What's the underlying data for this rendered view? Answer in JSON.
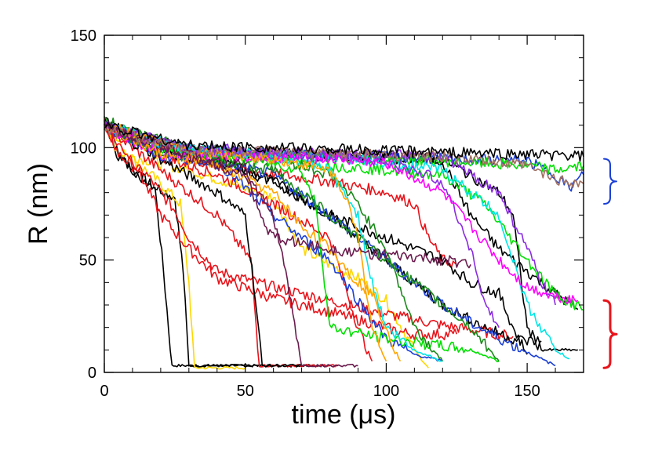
{
  "chart_data": {
    "type": "line",
    "xlabel": "time (μs)",
    "ylabel": "R (nm)",
    "xlim": [
      0,
      170
    ],
    "ylim": [
      0,
      150
    ],
    "x_ticks": [
      0,
      50,
      100,
      150
    ],
    "y_ticks": [
      0,
      50,
      100,
      150
    ],
    "grid": false,
    "legend": "none",
    "annotations": [
      {
        "type": "brace",
        "color": "#1a3fd6",
        "y_range": [
          75,
          95
        ]
      },
      {
        "type": "brace",
        "color": "#e8141b",
        "y_range": [
          2,
          32
        ]
      }
    ],
    "series": [
      {
        "color": "#000000",
        "x": [
          0,
          5,
          12,
          18,
          21,
          24,
          30,
          60
        ],
        "values": [
          112,
          97,
          88,
          82,
          45,
          3,
          3,
          3
        ]
      },
      {
        "color": "#000000",
        "x": [
          0,
          5,
          15,
          25,
          28,
          30,
          60,
          80
        ],
        "values": [
          112,
          96,
          85,
          78,
          45,
          3,
          3,
          3
        ]
      },
      {
        "color": "#ffd700",
        "x": [
          0,
          10,
          20,
          27,
          30,
          32,
          50
        ],
        "values": [
          110,
          95,
          84,
          75,
          40,
          2,
          2
        ]
      },
      {
        "color": "#ffd700",
        "x": [
          0,
          5,
          10,
          20,
          30,
          40,
          50,
          60,
          70,
          80,
          90,
          100,
          110,
          115
        ],
        "values": [
          110,
          98,
          96,
          93,
          90,
          86,
          82,
          78,
          55,
          48,
          42,
          32,
          10,
          2
        ]
      },
      {
        "color": "#e8141b",
        "x": [
          0,
          5,
          10,
          15,
          20,
          25,
          30,
          40,
          60,
          80,
          100,
          120,
          145
        ],
        "values": [
          112,
          97,
          92,
          88,
          80,
          72,
          60,
          45,
          38,
          32,
          26,
          21,
          16
        ]
      },
      {
        "color": "#e8141b",
        "x": [
          0,
          10,
          20,
          30,
          40,
          60,
          80,
          100,
          105,
          110,
          125
        ],
        "values": [
          108,
          95,
          70,
          55,
          42,
          33,
          27,
          20,
          18,
          17,
          17
        ]
      },
      {
        "color": "#e8141b",
        "x": [
          0,
          20,
          40,
          52,
          55,
          70,
          80,
          83
        ],
        "values": [
          110,
          90,
          70,
          50,
          3,
          3,
          3,
          3
        ]
      },
      {
        "color": "#e8141b",
        "x": [
          0,
          20,
          40,
          60,
          80,
          85,
          90,
          95
        ],
        "values": [
          110,
          96,
          88,
          75,
          60,
          40,
          20,
          5
        ]
      },
      {
        "color": "#e8141b",
        "x": [
          0,
          20,
          50,
          80,
          100,
          110,
          115,
          120,
          125
        ],
        "values": [
          110,
          97,
          90,
          85,
          80,
          75,
          60,
          50,
          48
        ]
      },
      {
        "color": "#000000",
        "x": [
          0,
          20,
          40,
          50,
          53,
          56,
          70
        ],
        "values": [
          110,
          95,
          80,
          70,
          40,
          3,
          3
        ]
      },
      {
        "color": "#000000",
        "x": [
          0,
          20,
          40,
          60,
          80,
          100,
          120,
          130,
          140,
          145,
          150
        ],
        "values": [
          112,
          98,
          95,
          85,
          70,
          60,
          50,
          40,
          35,
          20,
          8
        ]
      },
      {
        "color": "#000000",
        "x": [
          0,
          30,
          60,
          90,
          120,
          140,
          145,
          150,
          155,
          168
        ],
        "values": [
          110,
          100,
          98,
          97,
          95,
          80,
          70,
          20,
          10,
          10
        ]
      },
      {
        "color": "#000000",
        "x": [
          0,
          30,
          60,
          90,
          120,
          130,
          140,
          150,
          160,
          168
        ],
        "values": [
          110,
          99,
          97,
          96,
          94,
          70,
          55,
          45,
          35,
          28
        ]
      },
      {
        "color": "#000000",
        "x": [
          0,
          20,
          40,
          60,
          80,
          100,
          120,
          135,
          145,
          150,
          155
        ],
        "values": [
          110,
          98,
          94,
          85,
          70,
          50,
          30,
          20,
          15,
          14,
          14
        ]
      },
      {
        "color": "#1a3fd6",
        "x": [
          0,
          30,
          60,
          80,
          100,
          115,
          130,
          145,
          155,
          160
        ],
        "values": [
          110,
          95,
          88,
          70,
          50,
          35,
          22,
          12,
          6,
          3
        ]
      },
      {
        "color": "#1a3fd6",
        "x": [
          0,
          20,
          40,
          60,
          80,
          90,
          100,
          110,
          120
        ],
        "values": [
          110,
          96,
          94,
          70,
          50,
          32,
          15,
          8,
          5
        ]
      },
      {
        "color": "#1a3fd6",
        "x": [
          0,
          30,
          60,
          90,
          120,
          150,
          160,
          165,
          170
        ],
        "values": [
          110,
          99,
          97,
          96,
          95,
          94,
          88,
          82,
          88
        ]
      },
      {
        "color": "#00e000",
        "x": [
          0,
          30,
          60,
          90,
          120,
          150,
          160,
          170
        ],
        "values": [
          110,
          98,
          96,
          95,
          94,
          92,
          90,
          92
        ]
      },
      {
        "color": "#00e000",
        "x": [
          0,
          20,
          40,
          60,
          80,
          100,
          120,
          135,
          150,
          160,
          170
        ],
        "values": [
          110,
          100,
          97,
          95,
          92,
          90,
          88,
          75,
          50,
          35,
          28
        ]
      },
      {
        "color": "#00e000",
        "x": [
          0,
          30,
          50,
          60,
          70,
          75,
          80,
          100,
          130,
          140
        ],
        "values": [
          110,
          98,
          95,
          93,
          90,
          75,
          20,
          15,
          10,
          5
        ]
      },
      {
        "color": "#1a8a1a",
        "x": [
          0,
          30,
          60,
          80,
          90,
          100,
          110,
          120
        ],
        "values": [
          112,
          99,
          96,
          88,
          75,
          55,
          20,
          5
        ]
      },
      {
        "color": "#1a8a1a",
        "x": [
          0,
          20,
          40,
          60,
          70,
          80,
          100,
          130,
          140
        ],
        "values": [
          110,
          98,
          94,
          90,
          80,
          70,
          50,
          20,
          5
        ]
      },
      {
        "color": "#00e6e6",
        "x": [
          0,
          30,
          60,
          80,
          90,
          95,
          100,
          110,
          120
        ],
        "values": [
          110,
          98,
          96,
          90,
          70,
          40,
          20,
          10,
          5
        ]
      },
      {
        "color": "#00e6e6",
        "x": [
          0,
          30,
          60,
          90,
          120,
          140,
          150,
          160,
          165
        ],
        "values": [
          110,
          99,
          97,
          95,
          90,
          70,
          30,
          10,
          6
        ]
      },
      {
        "color": "#8a2be2",
        "x": [
          0,
          30,
          60,
          90,
          110,
          120,
          130,
          135,
          140
        ],
        "values": [
          110,
          99,
          97,
          96,
          90,
          85,
          55,
          30,
          20
        ]
      },
      {
        "color": "#8a2be2",
        "x": [
          0,
          30,
          60,
          90,
          120,
          140,
          150,
          155,
          160
        ],
        "values": [
          110,
          100,
          98,
          97,
          96,
          80,
          55,
          40,
          30
        ]
      },
      {
        "color": "#ff00ff",
        "x": [
          0,
          20,
          50,
          80,
          100,
          120,
          140,
          150,
          160,
          168
        ],
        "values": [
          110,
          97,
          96,
          95,
          93,
          80,
          50,
          38,
          34,
          32
        ]
      },
      {
        "color": "#ffa500",
        "x": [
          0,
          20,
          40,
          60,
          70,
          80,
          90,
          95,
          100,
          105
        ],
        "values": [
          110,
          97,
          92,
          80,
          65,
          55,
          40,
          35,
          20,
          5
        ]
      },
      {
        "color": "#ffa500",
        "x": [
          0,
          30,
          60,
          80,
          85,
          90,
          95,
          100
        ],
        "values": [
          110,
          98,
          95,
          90,
          80,
          60,
          20,
          5
        ]
      },
      {
        "color": "#6a1b4d",
        "x": [
          0,
          30,
          50,
          55,
          60,
          80,
          100,
          120,
          130
        ],
        "values": [
          110,
          97,
          92,
          70,
          60,
          55,
          52,
          50,
          48
        ]
      },
      {
        "color": "#6a1b4d",
        "x": [
          0,
          30,
          50,
          60,
          65,
          70,
          90
        ],
        "values": [
          110,
          96,
          88,
          70,
          40,
          3,
          3
        ]
      },
      {
        "color": "#a07060",
        "x": [
          0,
          30,
          60,
          90,
          120,
          150,
          160,
          170
        ],
        "values": [
          108,
          99,
          98,
          97,
          96,
          92,
          86,
          84
        ]
      },
      {
        "color": "#000000",
        "x": [
          0,
          30,
          60,
          90,
          120,
          150,
          170
        ],
        "values": [
          110,
          101,
          100,
          99,
          98,
          97,
          96
        ]
      }
    ]
  }
}
